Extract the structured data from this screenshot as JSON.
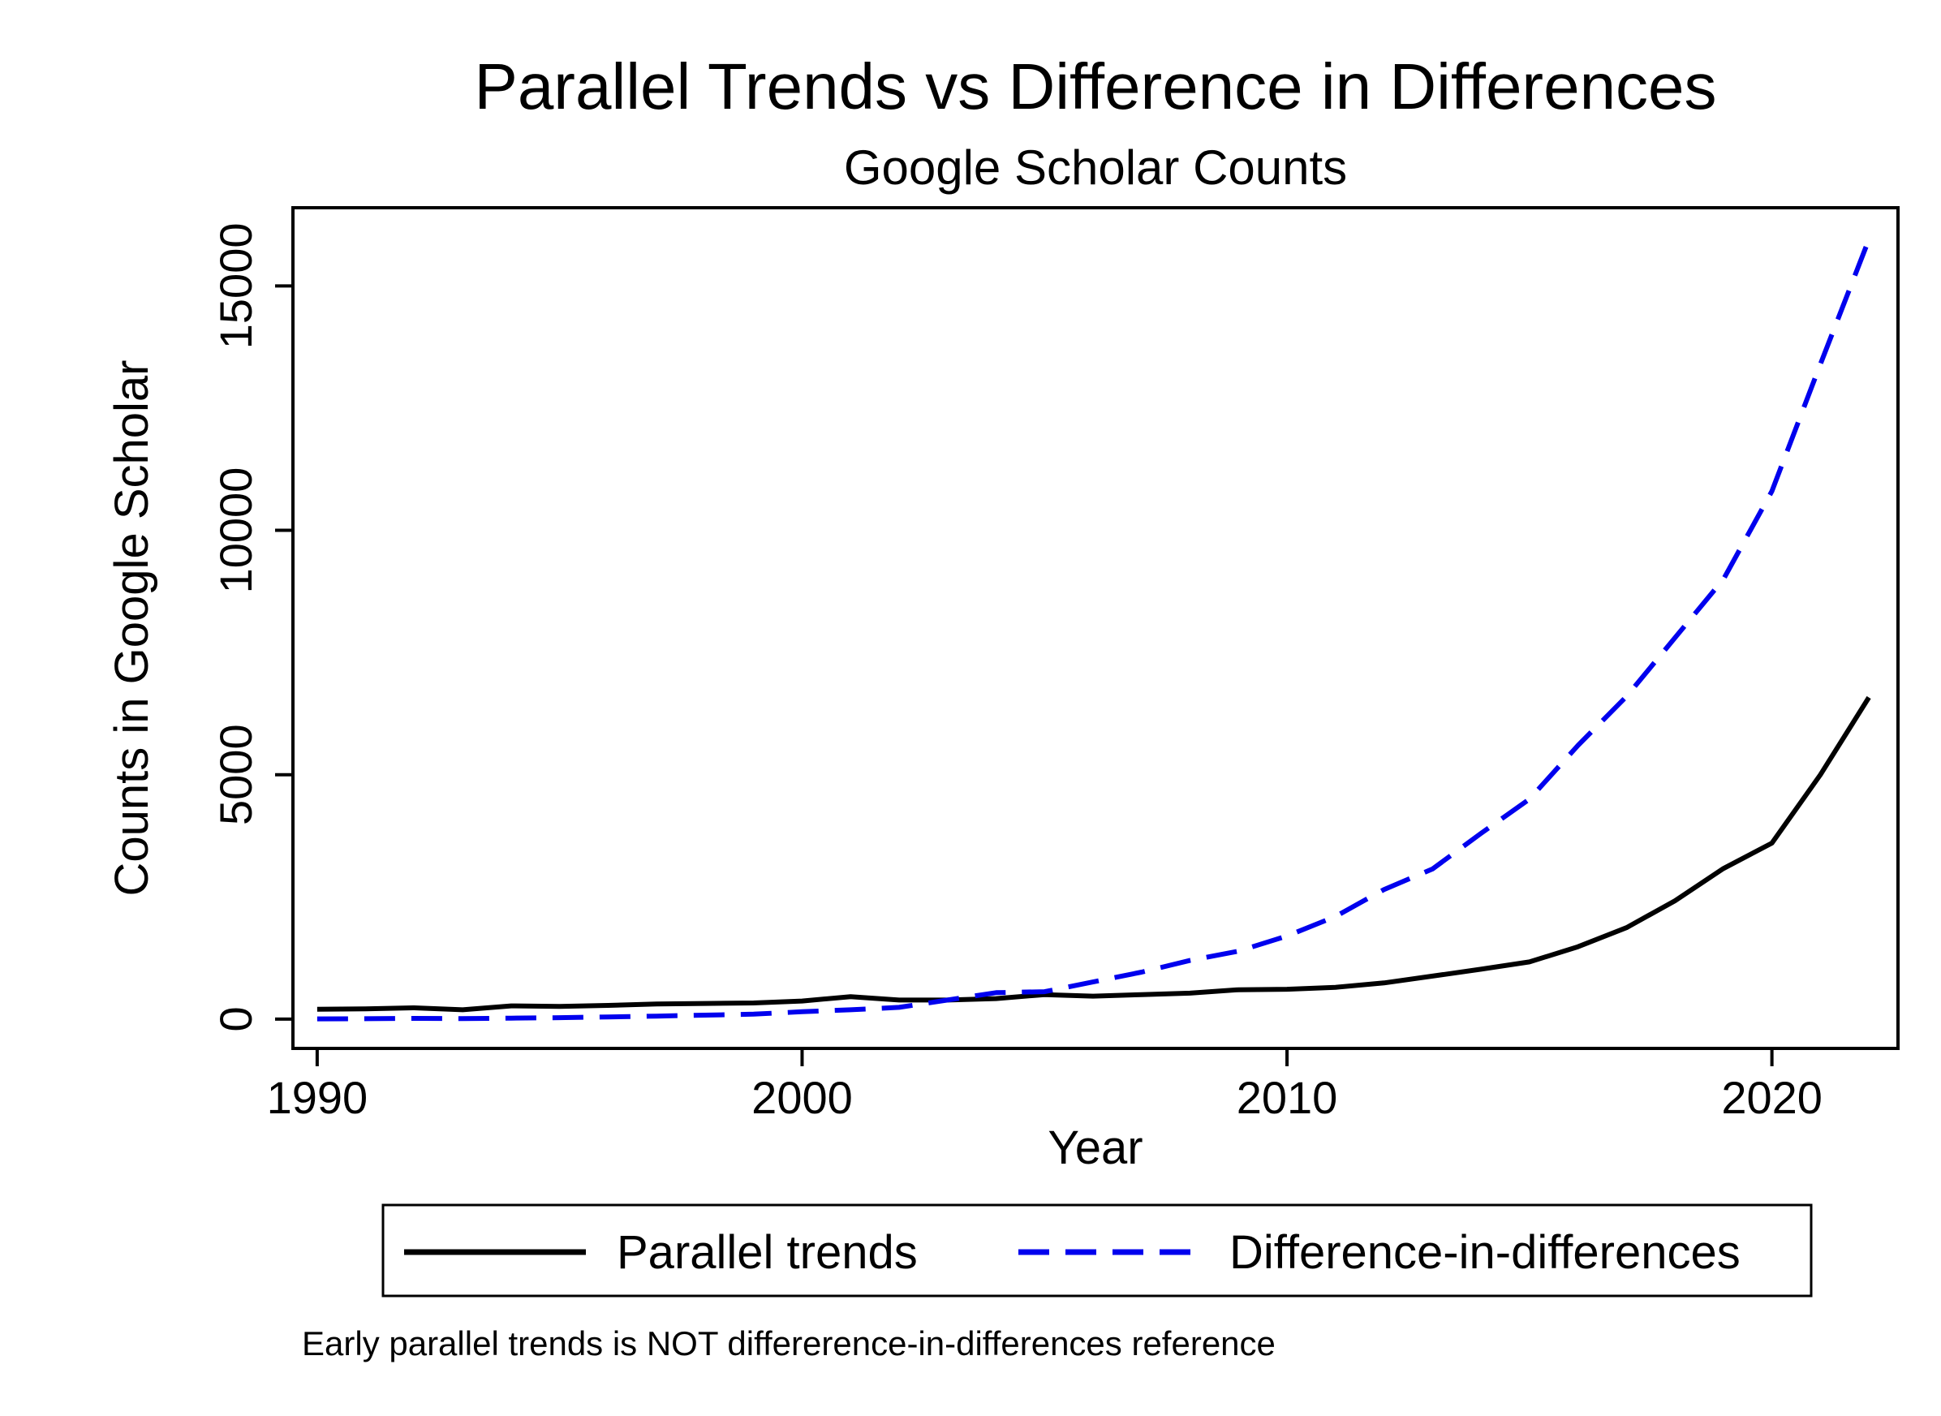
{
  "chart_data": {
    "type": "line",
    "title": "Parallel Trends vs Difference in Differences",
    "subtitle": "Google Scholar Counts",
    "xlabel": "Year",
    "ylabel": "Counts in Google Scholar",
    "xlim": [
      1989.5,
      2022.6
    ],
    "ylim": [
      -600,
      16600
    ],
    "xticks": [
      1990,
      2000,
      2010,
      2020
    ],
    "yticks": [
      0,
      5000,
      10000,
      15000
    ],
    "grid": false,
    "legend_position": "bottom",
    "note": "Early parallel trends is NOT differerence-in-differences reference",
    "x": [
      1990,
      1991,
      1992,
      1993,
      1994,
      1995,
      1996,
      1997,
      1998,
      1999,
      2000,
      2001,
      2002,
      2003,
      2004,
      2005,
      2006,
      2007,
      2008,
      2009,
      2010,
      2011,
      2012,
      2013,
      2014,
      2015,
      2016,
      2017,
      2018,
      2019,
      2020,
      2021,
      2022
    ],
    "series": [
      {
        "name": "Parallel trends",
        "color": "#000000",
        "style": "solid",
        "values": [
          200,
          210,
          230,
          190,
          270,
          260,
          280,
          310,
          320,
          330,
          370,
          460,
          390,
          390,
          420,
          500,
          470,
          500,
          530,
          600,
          610,
          650,
          740,
          880,
          1020,
          1170,
          1480,
          1870,
          2420,
          3080,
          3600,
          5000,
          6580
        ]
      },
      {
        "name": "Difference-in-differences",
        "color": "#0000ee",
        "style": "dashed",
        "values": [
          5,
          8,
          15,
          10,
          20,
          30,
          45,
          60,
          80,
          100,
          150,
          190,
          240,
          390,
          540,
          560,
          760,
          960,
          1200,
          1390,
          1700,
          2100,
          2650,
          3070,
          3800,
          4500,
          5600,
          6600,
          7800,
          9000,
          10800,
          13400,
          15950
        ]
      }
    ]
  }
}
